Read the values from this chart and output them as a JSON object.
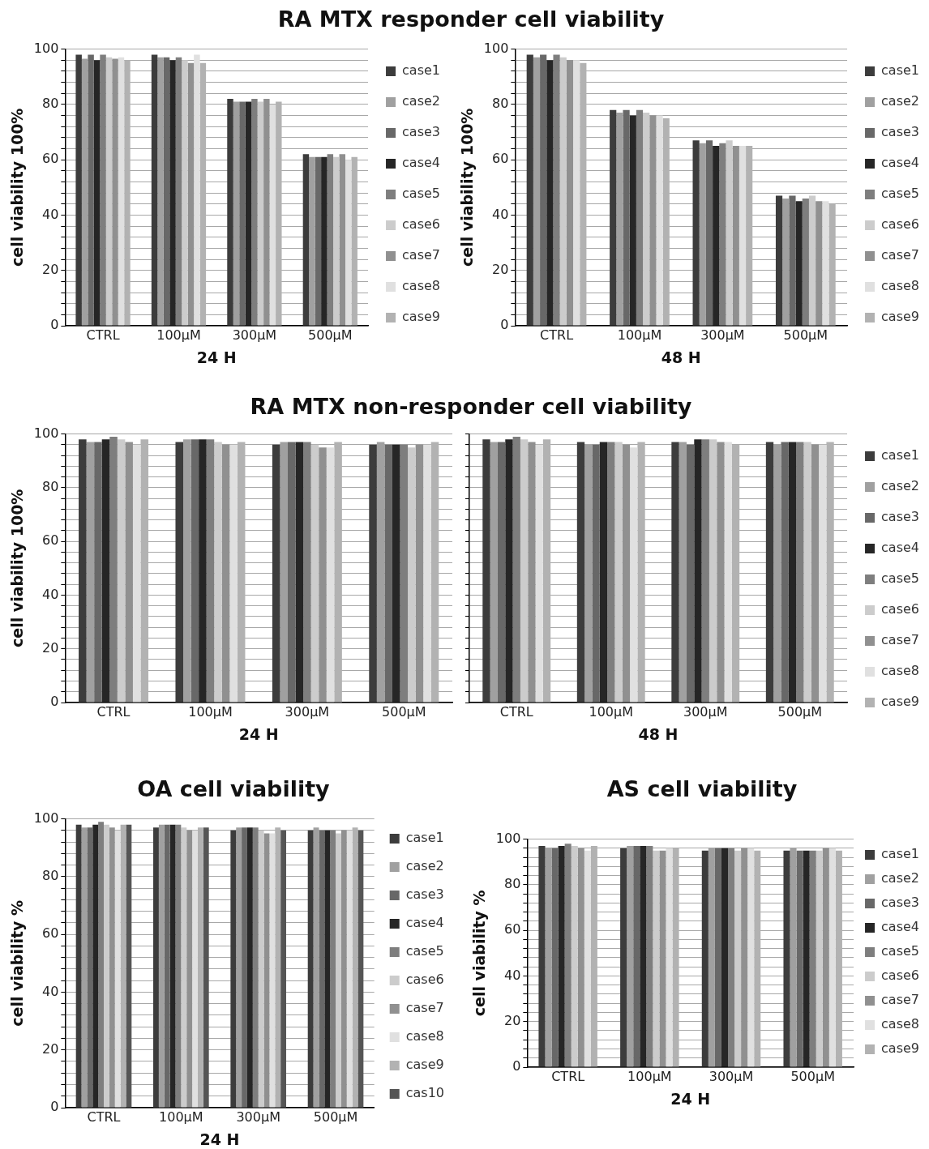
{
  "chart_data": [
    {
      "type": "bar",
      "title": "RA MTX responder cell viability",
      "xlabel": "24 H",
      "ylabel": "cell viability 100%",
      "categories": [
        "CTRL",
        "100μM",
        "300μM",
        "500μM"
      ],
      "ylim": [
        0,
        100
      ],
      "yticks": [
        0,
        {
          "value": 4,
          "label": null
        },
        {
          "value": 8,
          "label": null
        },
        {
          "value": 12,
          "label": null
        },
        {
          "value": 16,
          "label": null
        },
        20,
        {
          "value": 24,
          "label": null
        },
        {
          "value": 28,
          "label": null
        },
        {
          "value": 32,
          "label": null
        },
        {
          "value": 36,
          "label": null
        },
        40,
        {
          "value": 44,
          "label": null
        },
        {
          "value": 48,
          "label": null
        },
        {
          "value": 52,
          "label": null
        },
        {
          "value": 56,
          "label": null
        },
        60,
        {
          "value": 64,
          "label": null
        },
        {
          "value": 68,
          "label": null
        },
        {
          "value": 72,
          "label": null
        },
        {
          "value": 76,
          "label": null
        },
        80,
        {
          "value": 84,
          "label": null
        },
        {
          "value": 88,
          "label": null
        },
        {
          "value": 92,
          "label": null
        },
        {
          "value": 96,
          "label": null
        },
        100
      ],
      "grid": "y",
      "legend": "right",
      "series": [
        {
          "name": "case1",
          "color": "#3c3c3c",
          "values": [
            98,
            98,
            82,
            62
          ]
        },
        {
          "name": "case2",
          "color": "#a0a0a0",
          "values": [
            96.5,
            97,
            81,
            61
          ]
        },
        {
          "name": "case3",
          "color": "#686868",
          "values": [
            98,
            97,
            81,
            61
          ]
        },
        {
          "name": "case4",
          "color": "#262626",
          "values": [
            96,
            96,
            81,
            61
          ]
        },
        {
          "name": "case5",
          "color": "#7e7e7e",
          "values": [
            98,
            97,
            82,
            62
          ]
        },
        {
          "name": "case6",
          "color": "#cccccc",
          "values": [
            97,
            96,
            81,
            61
          ]
        },
        {
          "name": "case7",
          "color": "#909090",
          "values": [
            96.5,
            95,
            82,
            62
          ]
        },
        {
          "name": "case8",
          "color": "#e0e0e0",
          "values": [
            97,
            98,
            80,
            60
          ]
        },
        {
          "name": "case9",
          "color": "#b2b2b2",
          "values": [
            96,
            95,
            81,
            61
          ]
        }
      ]
    },
    {
      "type": "bar",
      "xlabel": "48 H",
      "ylabel": "cell viability 100%",
      "categories": [
        "CTRL",
        "100μM",
        "300μM",
        "500μM"
      ],
      "ylim": [
        0,
        100
      ],
      "yticks": [
        0,
        {
          "value": 4,
          "label": null
        },
        {
          "value": 8,
          "label": null
        },
        {
          "value": 12,
          "label": null
        },
        {
          "value": 16,
          "label": null
        },
        20,
        {
          "value": 24,
          "label": null
        },
        {
          "value": 28,
          "label": null
        },
        {
          "value": 32,
          "label": null
        },
        {
          "value": 36,
          "label": null
        },
        40,
        {
          "value": 44,
          "label": null
        },
        {
          "value": 48,
          "label": null
        },
        {
          "value": 52,
          "label": null
        },
        {
          "value": 56,
          "label": null
        },
        60,
        {
          "value": 64,
          "label": null
        },
        {
          "value": 68,
          "label": null
        },
        {
          "value": 72,
          "label": null
        },
        {
          "value": 76,
          "label": null
        },
        80,
        {
          "value": 84,
          "label": null
        },
        {
          "value": 88,
          "label": null
        },
        {
          "value": 92,
          "label": null
        },
        {
          "value": 96,
          "label": null
        },
        100
      ],
      "grid": "y",
      "legend": "right",
      "series": [
        {
          "name": "case1",
          "color": "#3c3c3c",
          "values": [
            98,
            78,
            67,
            47
          ]
        },
        {
          "name": "case2",
          "color": "#a0a0a0",
          "values": [
            97,
            77,
            66,
            46
          ]
        },
        {
          "name": "case3",
          "color": "#686868",
          "values": [
            98,
            78,
            67,
            47
          ]
        },
        {
          "name": "case4",
          "color": "#262626",
          "values": [
            96,
            76,
            65,
            45
          ]
        },
        {
          "name": "case5",
          "color": "#7e7e7e",
          "values": [
            98,
            78,
            66,
            46
          ]
        },
        {
          "name": "case6",
          "color": "#cccccc",
          "values": [
            97,
            77,
            67,
            47
          ]
        },
        {
          "name": "case7",
          "color": "#909090",
          "values": [
            96,
            76,
            65,
            45
          ]
        },
        {
          "name": "case8",
          "color": "#e0e0e0",
          "values": [
            96,
            76,
            65,
            45
          ]
        },
        {
          "name": "case9",
          "color": "#b2b2b2",
          "values": [
            95,
            75,
            65,
            44
          ]
        }
      ]
    },
    {
      "type": "bar",
      "title": "RA MTX non-responder cell viability",
      "xlabel": "24 H",
      "ylabel": "cell viability 100%",
      "categories": [
        "CTRL",
        "100μM",
        "300μM",
        "500μM"
      ],
      "ylim": [
        0,
        100
      ],
      "yticks": [
        0,
        {
          "value": 4,
          "label": null
        },
        {
          "value": 8,
          "label": null
        },
        {
          "value": 12,
          "label": null
        },
        {
          "value": 16,
          "label": null
        },
        20,
        {
          "value": 24,
          "label": null
        },
        {
          "value": 28,
          "label": null
        },
        {
          "value": 32,
          "label": null
        },
        {
          "value": 36,
          "label": null
        },
        40,
        {
          "value": 44,
          "label": null
        },
        {
          "value": 48,
          "label": null
        },
        {
          "value": 52,
          "label": null
        },
        {
          "value": 56,
          "label": null
        },
        60,
        {
          "value": 64,
          "label": null
        },
        {
          "value": 68,
          "label": null
        },
        {
          "value": 72,
          "label": null
        },
        {
          "value": 76,
          "label": null
        },
        80,
        {
          "value": 84,
          "label": null
        },
        {
          "value": 88,
          "label": null
        },
        {
          "value": 92,
          "label": null
        },
        {
          "value": 96,
          "label": null
        },
        100
      ],
      "grid": "y",
      "series": [
        {
          "color": "#3c3c3c",
          "values": [
            98,
            97,
            96,
            96
          ]
        },
        {
          "color": "#a0a0a0",
          "values": [
            97,
            98,
            97,
            97
          ]
        },
        {
          "color": "#686868",
          "values": [
            97,
            98,
            97,
            96
          ]
        },
        {
          "color": "#262626",
          "values": [
            98,
            98,
            97,
            96
          ]
        },
        {
          "color": "#7e7e7e",
          "values": [
            99,
            98,
            97,
            96
          ]
        },
        {
          "color": "#cccccc",
          "values": [
            98,
            97,
            96,
            95
          ]
        },
        {
          "color": "#909090",
          "values": [
            97,
            96,
            95,
            96
          ]
        },
        {
          "color": "#e0e0e0",
          "values": [
            96,
            96,
            95,
            96
          ]
        },
        {
          "color": "#b2b2b2",
          "values": [
            98,
            97,
            97,
            97
          ]
        }
      ]
    },
    {
      "type": "bar",
      "xlabel": "48 H",
      "categories": [
        "CTRL",
        "100μM",
        "300μM",
        "500μM"
      ],
      "ylim": [
        0,
        100
      ],
      "yticks": [
        0,
        {
          "value": 4,
          "label": null
        },
        {
          "value": 8,
          "label": null
        },
        {
          "value": 12,
          "label": null
        },
        {
          "value": 16,
          "label": null
        },
        20,
        {
          "value": 24,
          "label": null
        },
        {
          "value": 28,
          "label": null
        },
        {
          "value": 32,
          "label": null
        },
        {
          "value": 36,
          "label": null
        },
        40,
        {
          "value": 44,
          "label": null
        },
        {
          "value": 48,
          "label": null
        },
        {
          "value": 52,
          "label": null
        },
        {
          "value": 56,
          "label": null
        },
        60,
        {
          "value": 64,
          "label": null
        },
        {
          "value": 68,
          "label": null
        },
        {
          "value": 72,
          "label": null
        },
        {
          "value": 76,
          "label": null
        },
        80,
        {
          "value": 84,
          "label": null
        },
        {
          "value": 88,
          "label": null
        },
        {
          "value": 92,
          "label": null
        },
        {
          "value": 96,
          "label": null
        },
        100
      ],
      "grid": "y",
      "legend": "right",
      "tick_labels": "x",
      "series": [
        {
          "name": "case1",
          "color": "#3c3c3c",
          "values": [
            98,
            97,
            97,
            97
          ]
        },
        {
          "name": "case2",
          "color": "#a0a0a0",
          "values": [
            97,
            96,
            97,
            96
          ]
        },
        {
          "name": "case3",
          "color": "#686868",
          "values": [
            97,
            96,
            96,
            97
          ]
        },
        {
          "name": "case4",
          "color": "#262626",
          "values": [
            98,
            97,
            98,
            97
          ]
        },
        {
          "name": "case5",
          "color": "#7e7e7e",
          "values": [
            99,
            97,
            98,
            97
          ]
        },
        {
          "name": "case6",
          "color": "#cccccc",
          "values": [
            98,
            97,
            98,
            97
          ]
        },
        {
          "name": "case7",
          "color": "#909090",
          "values": [
            97,
            96,
            97,
            96
          ]
        },
        {
          "name": "case8",
          "color": "#e0e0e0",
          "values": [
            96,
            95,
            97,
            96
          ]
        },
        {
          "name": "case9",
          "color": "#b2b2b2",
          "values": [
            98,
            97,
            96,
            97
          ]
        }
      ]
    },
    {
      "type": "bar",
      "title": "OA cell viability",
      "xlabel": "24 H",
      "ylabel": "cell viability %",
      "categories": [
        "CTRL",
        "100μM",
        "300μM",
        "500μM"
      ],
      "ylim": [
        0,
        100
      ],
      "yticks": [
        0,
        {
          "value": 4,
          "label": null
        },
        {
          "value": 8,
          "label": null
        },
        {
          "value": 12,
          "label": null
        },
        {
          "value": 16,
          "label": null
        },
        20,
        {
          "value": 24,
          "label": null
        },
        {
          "value": 28,
          "label": null
        },
        {
          "value": 32,
          "label": null
        },
        {
          "value": 36,
          "label": null
        },
        40,
        {
          "value": 44,
          "label": null
        },
        {
          "value": 48,
          "label": null
        },
        {
          "value": 52,
          "label": null
        },
        {
          "value": 56,
          "label": null
        },
        60,
        {
          "value": 64,
          "label": null
        },
        {
          "value": 68,
          "label": null
        },
        {
          "value": 72,
          "label": null
        },
        {
          "value": 76,
          "label": null
        },
        80,
        {
          "value": 84,
          "label": null
        },
        {
          "value": 88,
          "label": null
        },
        {
          "value": 92,
          "label": null
        },
        {
          "value": 96,
          "label": null
        },
        100
      ],
      "grid": "y",
      "legend": "right",
      "series": [
        {
          "name": "case1",
          "color": "#3c3c3c",
          "values": [
            98,
            97,
            96,
            96
          ]
        },
        {
          "name": "case2",
          "color": "#a0a0a0",
          "values": [
            97,
            98,
            97,
            97
          ]
        },
        {
          "name": "case3",
          "color": "#686868",
          "values": [
            97,
            98,
            97,
            96
          ]
        },
        {
          "name": "case4",
          "color": "#262626",
          "values": [
            98,
            98,
            97,
            96
          ]
        },
        {
          "name": "case5",
          "color": "#7e7e7e",
          "values": [
            99,
            98,
            97,
            96
          ]
        },
        {
          "name": "case6",
          "color": "#cccccc",
          "values": [
            98,
            97,
            96,
            95
          ]
        },
        {
          "name": "case7",
          "color": "#909090",
          "values": [
            97,
            96,
            95,
            96
          ]
        },
        {
          "name": "case8",
          "color": "#e0e0e0",
          "values": [
            96,
            96,
            95,
            96
          ]
        },
        {
          "name": "case9",
          "color": "#b2b2b2",
          "values": [
            98,
            97,
            97,
            97
          ]
        },
        {
          "name": "cas10",
          "color": "#555555",
          "values": [
            98,
            97,
            96,
            96
          ]
        }
      ]
    },
    {
      "type": "bar",
      "title": "AS cell viability",
      "xlabel": "24 H",
      "ylabel": "cell viability %",
      "categories": [
        "CTRL",
        "100μM",
        "300μM",
        "500μM"
      ],
      "ylim": [
        0,
        100
      ],
      "yticks": [
        0,
        {
          "value": 4,
          "label": null
        },
        {
          "value": 8,
          "label": null
        },
        {
          "value": 12,
          "label": null
        },
        {
          "value": 16,
          "label": null
        },
        20,
        {
          "value": 24,
          "label": null
        },
        {
          "value": 28,
          "label": null
        },
        {
          "value": 32,
          "label": null
        },
        {
          "value": 36,
          "label": null
        },
        40,
        {
          "value": 44,
          "label": null
        },
        {
          "value": 48,
          "label": null
        },
        {
          "value": 52,
          "label": null
        },
        {
          "value": 56,
          "label": null
        },
        60,
        {
          "value": 64,
          "label": null
        },
        {
          "value": 68,
          "label": null
        },
        {
          "value": 72,
          "label": null
        },
        {
          "value": 76,
          "label": null
        },
        80,
        {
          "value": 84,
          "label": null
        },
        {
          "value": 88,
          "label": null
        },
        {
          "value": 92,
          "label": null
        },
        {
          "value": 96,
          "label": null
        },
        100
      ],
      "grid": "y",
      "legend": "right",
      "series": [
        {
          "name": "case1",
          "color": "#3c3c3c",
          "values": [
            97,
            96,
            95,
            95
          ]
        },
        {
          "name": "case2",
          "color": "#a0a0a0",
          "values": [
            96,
            97,
            96,
            96
          ]
        },
        {
          "name": "case3",
          "color": "#686868",
          "values": [
            96,
            97,
            96,
            95
          ]
        },
        {
          "name": "case4",
          "color": "#262626",
          "values": [
            97,
            97,
            96,
            95
          ]
        },
        {
          "name": "case5",
          "color": "#7e7e7e",
          "values": [
            98,
            97,
            96,
            95
          ]
        },
        {
          "name": "case6",
          "color": "#cccccc",
          "values": [
            97,
            95,
            95,
            95
          ]
        },
        {
          "name": "case7",
          "color": "#909090",
          "values": [
            96,
            95,
            96,
            96
          ]
        },
        {
          "name": "case8",
          "color": "#e0e0e0",
          "values": [
            95,
            96,
            96,
            96
          ]
        },
        {
          "name": "case9",
          "color": "#b2b2b2",
          "values": [
            97,
            96,
            95,
            95
          ]
        }
      ]
    }
  ]
}
